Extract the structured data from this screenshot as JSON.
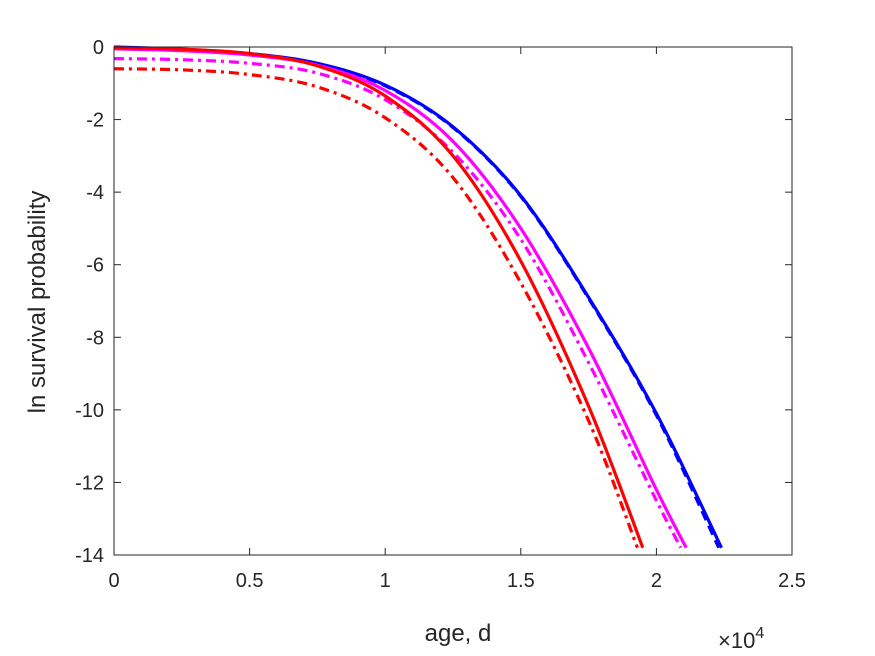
{
  "chart_data": {
    "type": "line",
    "title": "",
    "xlabel": "age, d",
    "ylabel": "ln survival probability",
    "x_exponent_label": {
      "base": "×10",
      "power": "4"
    },
    "xlim": [
      0,
      25000
    ],
    "ylim": [
      -14,
      0
    ],
    "xticks": [
      0,
      5000,
      10000,
      15000,
      20000,
      25000
    ],
    "xtick_labels": [
      "0",
      "0.5",
      "1",
      "1.5",
      "2",
      "2.5"
    ],
    "yticks": [
      0,
      -2,
      -4,
      -6,
      -8,
      -10,
      -12,
      -14
    ],
    "ytick_labels": [
      "0",
      "-2",
      "-4",
      "-6",
      "-8",
      "-10",
      "-12",
      "-14"
    ],
    "grid": false,
    "box": true,
    "series": [
      {
        "color": "#0000ff",
        "dash": "solid",
        "x": [
          0,
          2500,
          5000,
          7500,
          10000,
          12500,
          15000,
          17500,
          20000,
          22400
        ],
        "y": [
          0,
          -0.06,
          -0.18,
          -0.45,
          -1.05,
          -2.2,
          -4.1,
          -6.9,
          -10.1,
          -13.8
        ]
      },
      {
        "color": "#0000ff",
        "dash": "dashed",
        "x": [
          0,
          2500,
          5000,
          7500,
          10000,
          12500,
          15000,
          17500,
          20000,
          22300
        ],
        "y": [
          -0.02,
          -0.08,
          -0.2,
          -0.47,
          -1.07,
          -2.22,
          -4.12,
          -6.93,
          -10.15,
          -13.8
        ]
      },
      {
        "color": "#ff00ff",
        "dash": "solid",
        "x": [
          0,
          2500,
          5000,
          7500,
          10000,
          12500,
          15000,
          17500,
          20000,
          21100
        ],
        "y": [
          -0.05,
          -0.1,
          -0.22,
          -0.5,
          -1.2,
          -2.6,
          -5.0,
          -8.3,
          -12.2,
          -13.8
        ]
      },
      {
        "color": "#ff00ff",
        "dash": "dashdot",
        "x": [
          0,
          2500,
          5000,
          7500,
          10000,
          12500,
          15000,
          17500,
          20000,
          20900
        ],
        "y": [
          -0.32,
          -0.35,
          -0.45,
          -0.72,
          -1.45,
          -2.9,
          -5.3,
          -8.7,
          -12.5,
          -13.8
        ]
      },
      {
        "color": "#ff0000",
        "dash": "solid",
        "x": [
          0,
          2500,
          5000,
          7500,
          10000,
          12500,
          15000,
          17500,
          19500
        ],
        "y": [
          -0.02,
          -0.06,
          -0.18,
          -0.52,
          -1.35,
          -3.0,
          -5.9,
          -9.9,
          -13.8
        ]
      },
      {
        "color": "#ff0000",
        "dash": "dashdot",
        "x": [
          0,
          2500,
          5000,
          7500,
          10000,
          12500,
          15000,
          17500,
          19300
        ],
        "y": [
          -0.6,
          -0.63,
          -0.76,
          -1.1,
          -1.95,
          -3.6,
          -6.5,
          -10.3,
          -13.8
        ]
      }
    ]
  }
}
